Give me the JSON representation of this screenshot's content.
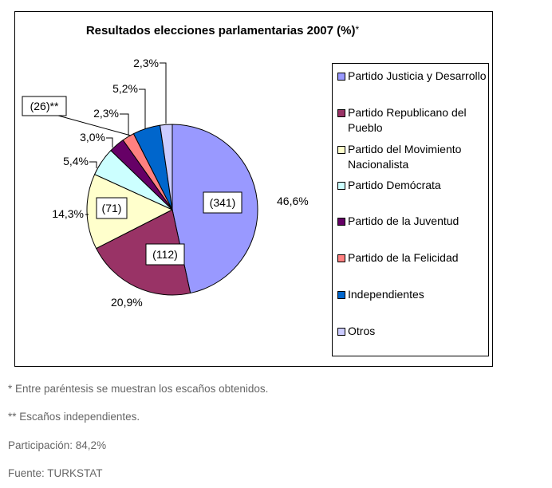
{
  "chart_data": {
    "type": "pie",
    "title": "Resultados elecciones parlamentarias 2007 (%)",
    "title_mark": "*",
    "categories": [
      "Partido Justicia y Desarrollo",
      "Partido Republicano del Pueblo",
      "Partido del Movimiento Nacionalista",
      "Partido Demócrata",
      "Partido de la Juventud",
      "Partido de la Felicidad",
      "Independientes",
      "Otros"
    ],
    "values": [
      46.6,
      20.9,
      14.3,
      5.4,
      3.0,
      2.3,
      5.2,
      2.3
    ],
    "value_labels": [
      "46,6%",
      "20,9%",
      "14,3%",
      "5,4%",
      "3,0%",
      "2,3%",
      "5,2%",
      "2,3%"
    ],
    "seat_labels": [
      "(341)",
      "(112)",
      "(71)",
      "",
      "",
      "",
      "(26)**",
      ""
    ],
    "colors": [
      "#9999ff",
      "#993366",
      "#ffffcc",
      "#ccffff",
      "#660066",
      "#ff8080",
      "#0066cc",
      "#ccccff"
    ],
    "legend_position": "right"
  },
  "notes": [
    "* Entre paréntesis se muestran los escaños obtenidos.",
    "** Escaños independientes.",
    "Participación: 84,2%",
    "Fuente: TURKSTAT"
  ]
}
